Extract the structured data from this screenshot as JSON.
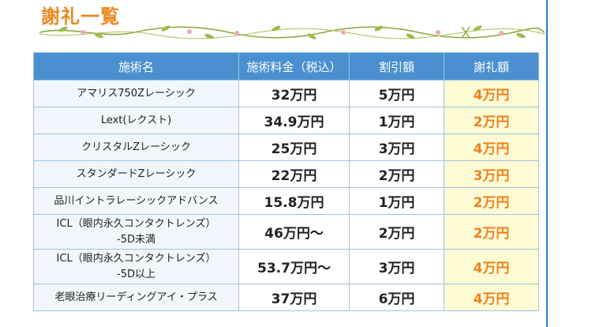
{
  "heading": "謝礼一覧",
  "accent_color": "#e8891e",
  "header_color": "#4a90d0",
  "reward_bg_color": "#fdfbd4",
  "table": {
    "headers": [
      "施術名",
      "施術料金（税込）",
      "割引額",
      "謝礼額"
    ],
    "rows": [
      {
        "name_lines": [
          "アマリス750Zレーシック"
        ],
        "price": "32万円",
        "discount": "5万円",
        "reward": "4万円"
      },
      {
        "name_lines": [
          "Lext(レクスト)"
        ],
        "price": "34.9万円",
        "discount": "1万円",
        "reward": "2万円"
      },
      {
        "name_lines": [
          "クリスタルZレーシック"
        ],
        "price": "25万円",
        "discount": "3万円",
        "reward": "4万円"
      },
      {
        "name_lines": [
          "スタンダードZレーシック"
        ],
        "price": "22万円",
        "discount": "2万円",
        "reward": "3万円"
      },
      {
        "name_lines": [
          "品川イントラレーシックアドバンス"
        ],
        "price": "15.8万円",
        "discount": "1万円",
        "reward": "2万円"
      },
      {
        "name_lines": [
          "ICL（眼内永久コンタクトレンズ）",
          "-5D未満"
        ],
        "price": "46万円〜",
        "discount": "2万円",
        "reward": "2万円"
      },
      {
        "name_lines": [
          "ICL（眼内永久コンタクトレンズ）",
          "-5D以上"
        ],
        "price": "53.7万円〜",
        "discount": "3万円",
        "reward": "4万円"
      },
      {
        "name_lines": [
          "老眼治療リーディングアイ・プラス"
        ],
        "price": "37万円",
        "discount": "6万円",
        "reward": "4万円"
      }
    ]
  }
}
